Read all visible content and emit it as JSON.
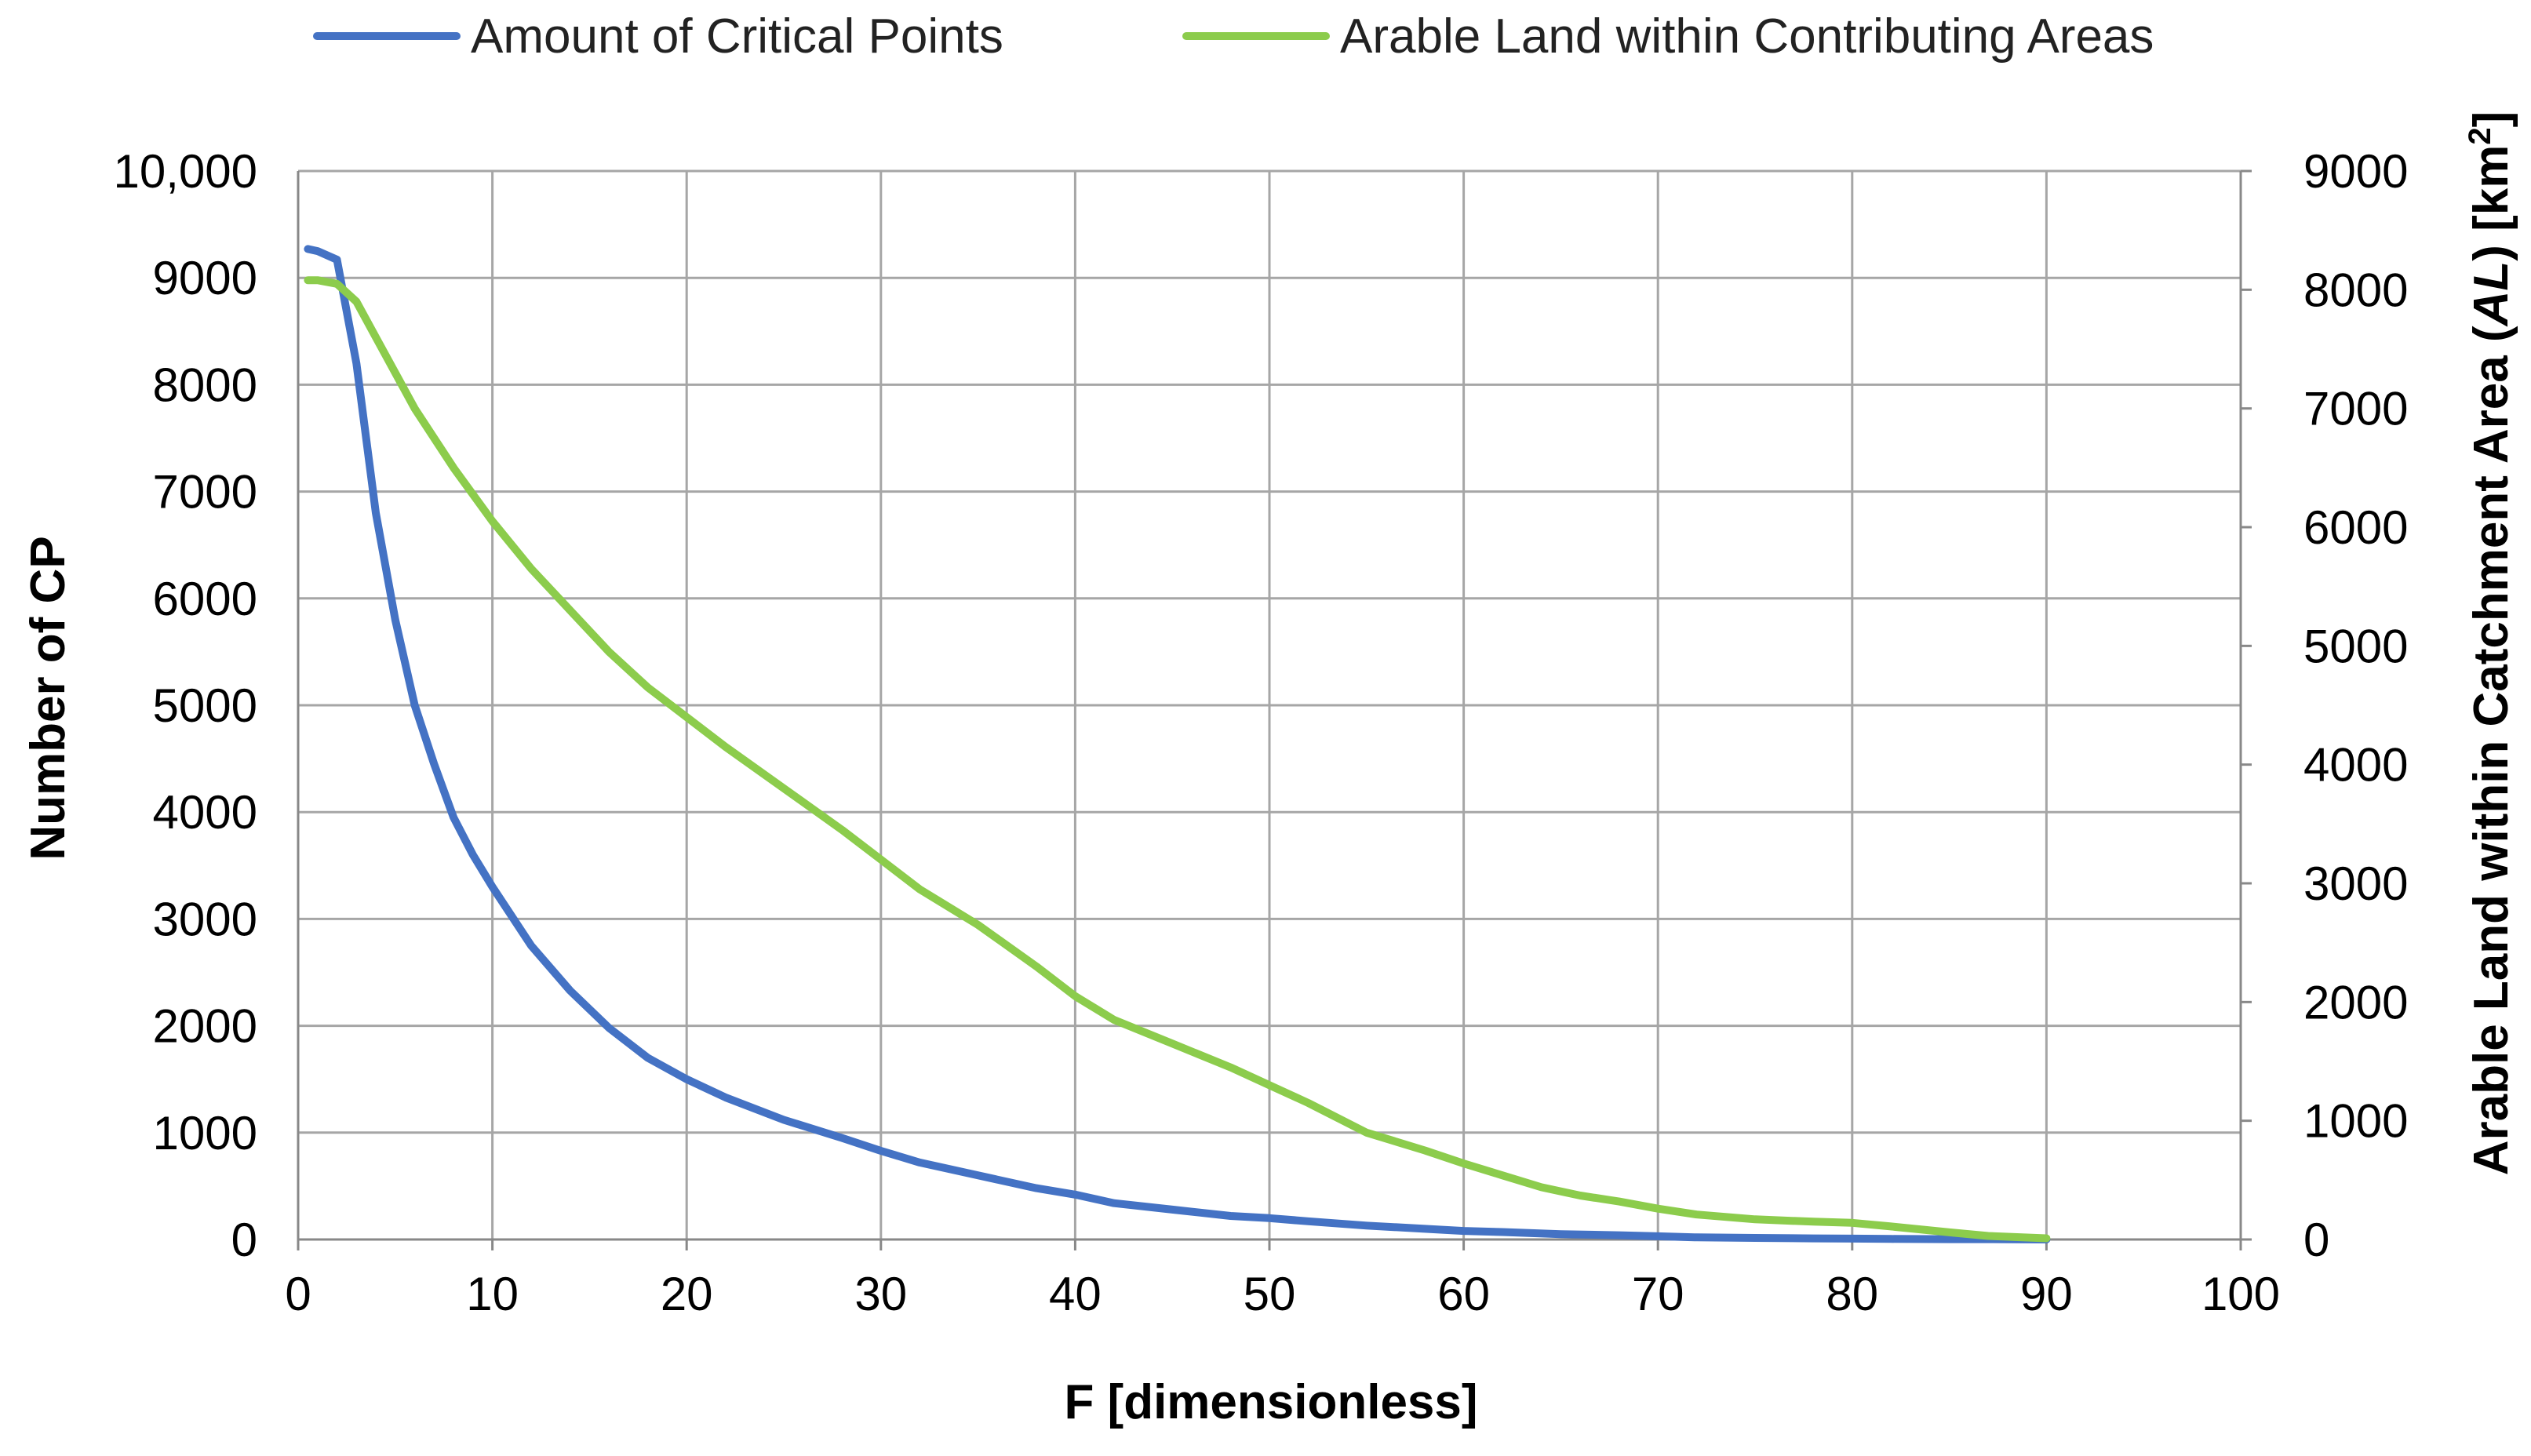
{
  "chart_data": {
    "type": "line",
    "xlabel": "F [dimensionless]",
    "ylabel": "Number of CP",
    "y2label_parts": [
      "Arable Land within Catchment Area (",
      "AL",
      ") [km",
      "2",
      "]"
    ],
    "xlim": [
      0,
      100
    ],
    "ylim": [
      0,
      10000
    ],
    "y2lim": [
      0,
      9000
    ],
    "x_ticks": [
      "0",
      "10",
      "20",
      "30",
      "40",
      "50",
      "60",
      "70",
      "80",
      "90",
      "100"
    ],
    "y_ticks": [
      "0",
      "1000",
      "2000",
      "3000",
      "4000",
      "5000",
      "6000",
      "7000",
      "8000",
      "9000",
      "10,000"
    ],
    "y2_ticks": [
      "0",
      "1000",
      "2000",
      "3000",
      "4000",
      "5000",
      "6000",
      "7000",
      "8000",
      "9000"
    ],
    "grid": true,
    "legend_position": "top",
    "series": [
      {
        "name": "Amount of Critical Points",
        "axis": "left",
        "color": "#4472C4",
        "x": [
          0.5,
          1,
          2,
          3,
          4,
          5,
          6,
          7,
          8,
          9,
          10,
          12,
          14,
          16,
          18,
          20,
          22,
          25,
          28,
          30,
          32,
          35,
          38,
          40,
          42,
          45,
          48,
          50,
          52,
          55,
          58,
          60,
          62,
          65,
          68,
          70,
          72,
          75,
          78,
          80,
          82,
          85,
          88,
          90
        ],
        "y": [
          9270,
          9250,
          9170,
          8200,
          6800,
          5800,
          5000,
          4450,
          3950,
          3600,
          3300,
          2750,
          2330,
          1980,
          1700,
          1500,
          1330,
          1120,
          950,
          830,
          720,
          600,
          480,
          420,
          340,
          280,
          220,
          200,
          170,
          130,
          100,
          80,
          70,
          50,
          40,
          30,
          20,
          15,
          10,
          8,
          5,
          3,
          2,
          0
        ]
      },
      {
        "name": "Arable Land within Contributing Areas",
        "axis": "right",
        "color": "#8CCC4C",
        "x": [
          0.5,
          1,
          2,
          3,
          4,
          6,
          8,
          10,
          12,
          14,
          16,
          18,
          20,
          22,
          25,
          28,
          30,
          32,
          35,
          38,
          40,
          42,
          45,
          48,
          50,
          52,
          55,
          58,
          60,
          62,
          64,
          66,
          68,
          70,
          72,
          75,
          78,
          80,
          82,
          85,
          87,
          90
        ],
        "y": [
          8080,
          8080,
          8050,
          7900,
          7600,
          7000,
          6500,
          6050,
          5650,
          5300,
          4950,
          4650,
          4400,
          4150,
          3800,
          3450,
          3200,
          2950,
          2650,
          2300,
          2050,
          1850,
          1650,
          1450,
          1300,
          1150,
          900,
          750,
          640,
          540,
          440,
          370,
          320,
          260,
          210,
          170,
          150,
          140,
          110,
          60,
          30,
          10
        ]
      }
    ]
  }
}
